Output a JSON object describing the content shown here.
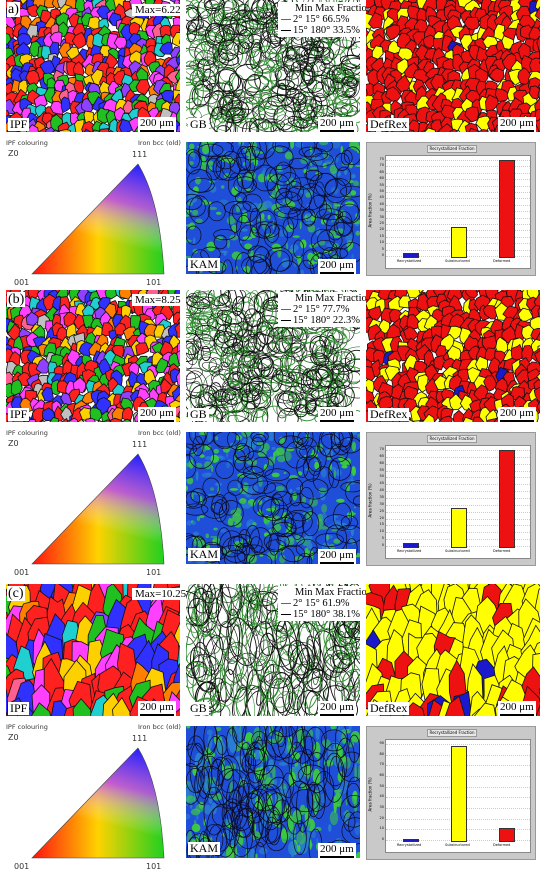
{
  "colors": {
    "defrex_red": "#ee1111",
    "defrex_yellow": "#ffff00",
    "defrex_blue": "#1a1acc",
    "kam_blue": "#1f4fd8",
    "kam_green": "#3ccc3c",
    "gb_green": "#2e8b2e"
  },
  "panels": [
    {
      "letter": "a)",
      "ipf": {
        "max": "Max=6.22",
        "label": "IPF",
        "scale": "200 μm"
      },
      "gb": {
        "label": "GB",
        "scale": "200 μm",
        "legend_header": "Min Max  Fraction",
        "rows": [
          "2°  15°    66.5%",
          "15° 180°  33.5%"
        ]
      },
      "defrex": {
        "label": "DefRex",
        "scale": "200 μm"
      },
      "ipf_key": {
        "left_caption": "IPF colouring",
        "right_caption": "Iron bcc (old)",
        "axis_label": "Z0",
        "corner_top": "111",
        "corner_left": "001",
        "corner_right": "101"
      },
      "kam": {
        "label": "KAM",
        "scale": "200 μm"
      },
      "chart_data": {
        "type": "bar",
        "title": "Recrystallized Fraction",
        "ylabel": "Area fraction (%)",
        "categories": [
          "Recrystallized",
          "Substructured",
          "Deformed"
        ],
        "values": [
          2,
          23,
          75
        ],
        "ylim": [
          0,
          75
        ],
        "colors": [
          "#1a1acc",
          "#ffff00",
          "#ee1111"
        ]
      }
    },
    {
      "letter": "(b)",
      "ipf": {
        "max": "Max=8.25",
        "label": "IPF",
        "scale": "200 μm"
      },
      "gb": {
        "label": "GB",
        "scale": "200 μm",
        "legend_header": "Min Max  Fraction",
        "rows": [
          "2°  15°    77.7%",
          "15° 180°  22.3%"
        ]
      },
      "defrex": {
        "label": "DefRex",
        "scale": "200 μm"
      },
      "ipf_key": {
        "left_caption": "IPF colouring",
        "right_caption": "Iron bcc (old)",
        "axis_label": "Z0",
        "corner_top": "111",
        "corner_left": "001",
        "corner_right": "101"
      },
      "kam": {
        "label": "KAM",
        "scale": "200 μm"
      },
      "chart_data": {
        "type": "bar",
        "title": "Recrystallized Fraction",
        "ylabel": "Area fraction (%)",
        "categories": [
          "Recrystallized",
          "Substructured",
          "Deformed"
        ],
        "values": [
          2,
          28,
          70
        ],
        "ylim": [
          0,
          70
        ],
        "colors": [
          "#1a1acc",
          "#ffff00",
          "#ee1111"
        ]
      }
    },
    {
      "letter": "(c)",
      "ipf": {
        "max": "Max=10.25",
        "label": "IPF",
        "scale": "200 μm"
      },
      "gb": {
        "label": "GB",
        "scale": "200 μm",
        "legend_header": "Min Max  Fraction",
        "rows": [
          "2°  15°    61.9%",
          "15° 180°  38.1%"
        ]
      },
      "defrex": {
        "label": "DefRex",
        "scale": "200 μm"
      },
      "ipf_key": {
        "left_caption": "IPF colouring",
        "right_caption": "Iron bcc (old)",
        "axis_label": "Z0",
        "corner_top": "111",
        "corner_left": "001",
        "corner_right": "101"
      },
      "kam": {
        "label": "KAM",
        "scale": "200 μm"
      },
      "chart_data": {
        "type": "bar",
        "title": "Recrystallized Fraction",
        "ylabel": "Area fraction (%)",
        "categories": [
          "Recrystallized",
          "Substructured",
          "Deformed"
        ],
        "values": [
          1,
          88,
          11
        ],
        "ylim": [
          0,
          90
        ],
        "colors": [
          "#1a1acc",
          "#ffff00",
          "#ee1111"
        ]
      }
    }
  ]
}
